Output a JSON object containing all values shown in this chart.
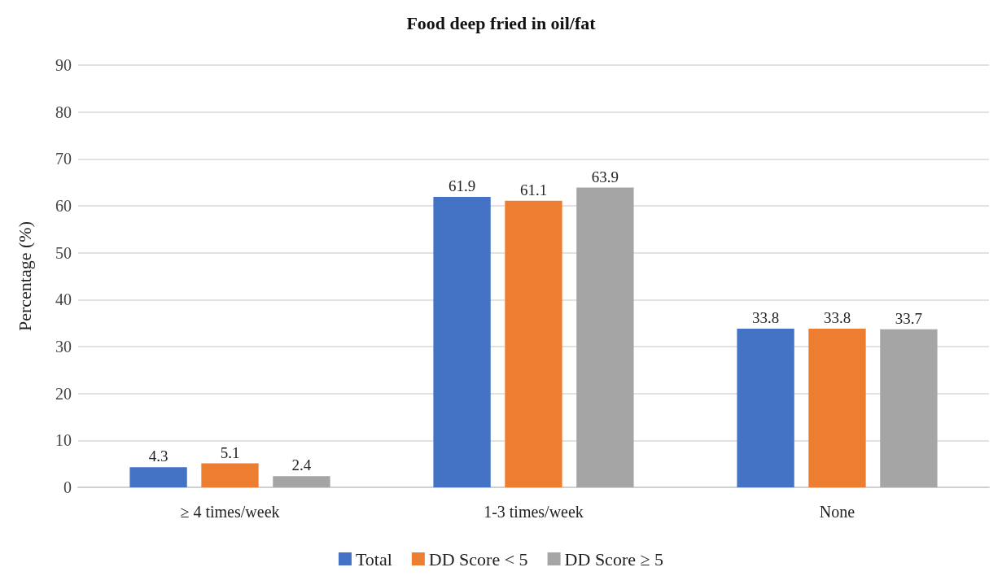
{
  "chart_data": {
    "type": "bar",
    "title": "Food deep fried in oil/fat",
    "ylabel": "Percentage (%)",
    "categories": [
      "≥ 4 times/week",
      "1-3 times/week",
      "None"
    ],
    "series": [
      {
        "name": "Total",
        "color": "#4472c4",
        "values": [
          4.3,
          61.9,
          33.8
        ]
      },
      {
        "name": "DD Score < 5",
        "color": "#ed7d31",
        "values": [
          5.1,
          61.1,
          33.8
        ]
      },
      {
        "name": "DD Score ≥ 5",
        "color": "#a5a5a5",
        "values": [
          2.4,
          63.9,
          33.7
        ]
      }
    ],
    "ylim": [
      0,
      90
    ],
    "yticks": [
      0,
      10,
      20,
      30,
      40,
      50,
      60,
      70,
      80,
      90
    ],
    "grid": "y",
    "legend": "bottom",
    "data_labels": true
  }
}
